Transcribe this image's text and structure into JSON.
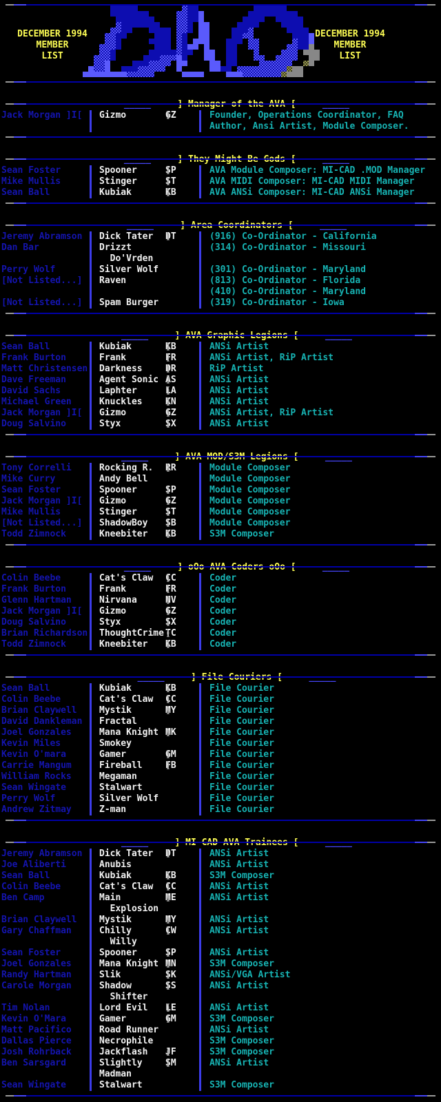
{
  "palette": {
    "background": "#000000",
    "dark_blue": "#0000a8",
    "name_blue": "#1414af",
    "bright_blue": "#4646fa",
    "yellow": "#fcfc54",
    "white": "#f2f2f2",
    "gray": "#a8a8a8",
    "cyan": "#17b3b3"
  },
  "banner": {
    "left": [
      "DECEMBER 1994",
      "MEMBER",
      "LIST"
    ],
    "right": [
      "DECEMBER 1994",
      "MEMBER",
      "LIST"
    ]
  },
  "logo": {
    "name": "ava-ansi-logo",
    "rows": [
      ".....BBBBB........hBB..........BBBBBB.......",
      ".....BBBBBBB.....hhBBb........BBBBBBBBB.....",
      "......BBBBBBB....hhBBb.......BBBB..BBBBB....",
      "......hBBBBBBB...hhB.bb.....BBBB....BBBB....",
      ".....hhBB...BBBB.hhB.bb....BBBh......BBBB...",
      "....hhBB.....BBB.hB..bb....BBhh.......BBBb..",
      "....hhB.....BBBB.hB.bbb...BBB.hh......hBBb..",
      "...hhhB......BBB.hBbb.b...BB..hh.....hhBBg..",
      "...hhB......BBBBBhBB..bb..BB...h....hhh.ggg.",
      "..hhhB.....BBBhhhbB...bb..BB...hh..hhhh..gg.",
      "..hhb....BBBhhhh.bb....bb.BB....hhhhhh..yg..",
      ".bhhb..BBBhhhhh..b.....bbBB.hhhhhhhhhygg....",
      "bbbbbbbbhhhhh.....bbbb....bbbhhhhhhhyggg...."
    ]
  },
  "header_decor": {
    "underscores": "_____",
    "dashes": "----",
    "bracket_left": "]",
    "bracket_right": "[",
    "paren_open": "(",
    "paren_close": ")"
  },
  "sections": [
    {
      "title": "Manager of the AVA",
      "rows": [
        {
          "name": "Jack Morgan ]I[",
          "handle": "Gizmo",
          "init": "GZ",
          "desc": "Founder, Operations Coordinator, FAQ"
        },
        {
          "desc": "Author, Ansi Artist, Module Composer."
        }
      ]
    },
    {
      "title": "They Might Be Gods",
      "rows": [
        {
          "name": "Sean Foster",
          "handle": "Spooner",
          "init": "SP",
          "desc": "AVA Module Composer: MI-CAD .MOD Manager"
        },
        {
          "name": "Mike Mullis",
          "handle": "Stinger",
          "init": "ST",
          "desc": "AVA MIDI Composer: MI-CAD MIDI Manager"
        },
        {
          "name": "Sean Ball",
          "handle": "Kubiak",
          "init": "KB",
          "desc": "AVA ANSi Composer: MI-CAD ANSi Manager"
        }
      ]
    },
    {
      "title": "Area Coordinators",
      "rows": [
        {
          "name": "Jeremy Abramson",
          "handle": "Dick Tater",
          "init": "DT",
          "desc": "(916) Co-Ordinator - California"
        },
        {
          "name": "Dan Bar",
          "handle": "Drizzt",
          "desc": "(314) Co-Ordinator - Missouri"
        },
        {
          "handle": "  Do'Vrden"
        },
        {
          "name": "Perry Wolf",
          "handle": "Silver Wolf",
          "desc": "(301) Co-Ordinator - Maryland"
        },
        {
          "name": "[Not Listed...]",
          "handle": "Raven",
          "desc": "(813) Co-Ordinator - Florida"
        },
        {
          "desc": "(410) Co-Ordinator - Maryland"
        },
        {
          "name": "[Not Listed...]",
          "handle": "Spam Burger",
          "desc": "(319) Co-Ordinator - Iowa"
        }
      ]
    },
    {
      "title": "AVA Graphic Legions",
      "rows": [
        {
          "name": "Sean Ball",
          "handle": "Kubiak",
          "init": "KB",
          "desc": "ANSi Artist"
        },
        {
          "name": "Frank Burton",
          "handle": "Frank",
          "init": "FR",
          "desc": "ANSi Artist, RiP Artist"
        },
        {
          "name": "Matt Christensen",
          "handle": "Darkness",
          "init": "DR",
          "desc": "RiP Artist"
        },
        {
          "name": "Dave Freeman",
          "handle": "Agent Sonic",
          "init": "AS",
          "desc": "ANSi Artist"
        },
        {
          "name": "David Sachs",
          "handle": "Laphter",
          "init": "LA",
          "desc": "ANSi Artist"
        },
        {
          "name": "Michael Green",
          "handle": "Knuckles",
          "init": "KN",
          "desc": "ANSi Artist"
        },
        {
          "name": "Jack Morgan ]I[",
          "handle": "Gizmo",
          "init": "GZ",
          "desc": "ANSi Artist, RiP Artist"
        },
        {
          "name": "Doug Salvino",
          "handle": "Styx",
          "init": "SX",
          "desc": "ANSi Artist"
        }
      ]
    },
    {
      "title": "AVA MOD/S3M Legions",
      "rows": [
        {
          "name": "Tony Correlli",
          "handle": "Rocking R.",
          "init": "RR",
          "desc": "Module Composer"
        },
        {
          "name": "Mike Curry",
          "handle": "Andy Bell",
          "desc": "Module Composer"
        },
        {
          "name": "Sean Foster",
          "handle": "Spooner",
          "init": "SP",
          "desc": "Module Composer"
        },
        {
          "name": "Jack Morgan ]I[",
          "handle": "Gizmo",
          "init": "GZ",
          "desc": "Module Composer"
        },
        {
          "name": "Mike Mullis",
          "handle": "Stinger",
          "init": "ST",
          "desc": "Module Composer"
        },
        {
          "name": "[Not Listed...]",
          "handle": "ShadowBoy",
          "init": "SB",
          "desc": "Module Composer"
        },
        {
          "name": "Todd Zimnock",
          "handle": "Kneebiter",
          "init": "KB",
          "desc": "S3M Composer"
        }
      ]
    },
    {
      "title": "oOo AVA Coders oOo",
      "rows": [
        {
          "name": "Colin Beebe",
          "handle": "Cat's Claw",
          "init": "CC",
          "desc": "Coder"
        },
        {
          "name": "Frank Burton",
          "handle": "Frank",
          "init": "FR",
          "desc": "Coder"
        },
        {
          "name": "Glenn Hartman",
          "handle": "Nirvana",
          "init": "NV",
          "desc": "Coder"
        },
        {
          "name": "Jack Morgan ]I[",
          "handle": "Gizmo",
          "init": "GZ",
          "desc": "Coder"
        },
        {
          "name": "Doug Salvino",
          "handle": "Styx",
          "init": "SX",
          "desc": "Coder"
        },
        {
          "name": "Brian Richardson",
          "handle": "ThoughtCrime",
          "init": "TC",
          "desc": "Coder"
        },
        {
          "name": "Todd Zimnock",
          "handle": "Kneebiter",
          "init": "KB",
          "desc": "Coder"
        }
      ]
    },
    {
      "title": "File Couriers",
      "rows": [
        {
          "name": "Sean Ball",
          "handle": "Kubiak",
          "init": "KB",
          "desc": "File Courier"
        },
        {
          "name": "Colin Beebe",
          "handle": "Cat's Claw",
          "init": "CC",
          "desc": "File Courier"
        },
        {
          "name": "Brian Claywell",
          "handle": "Mystik",
          "init": "MY",
          "desc": "File Courier"
        },
        {
          "name": "David Dankleman",
          "handle": "Fractal",
          "desc": "File Courier"
        },
        {
          "name": "Joel Gonzales",
          "handle": "Mana Knight",
          "init": "MK",
          "desc": "File Courier"
        },
        {
          "name": "Kevin Miles",
          "handle": "Smokey",
          "desc": "File Courier"
        },
        {
          "name": "Kevin O'mara",
          "handle": "Gamer",
          "init": "GM",
          "desc": "File Courier"
        },
        {
          "name": "Carrie Mangum",
          "handle": "Fireball",
          "init": "FB",
          "desc": "File Courier"
        },
        {
          "name": "William Rocks",
          "handle": "Megaman",
          "desc": "File Courier"
        },
        {
          "name": "Sean Wingate",
          "handle": "Stalwart",
          "desc": "File Courier"
        },
        {
          "name": "Perry Wolf",
          "handle": "Silver Wolf",
          "desc": "File Courier"
        },
        {
          "name": "Andrew Zitmay",
          "handle": "Z-man",
          "desc": "File Courier"
        }
      ]
    },
    {
      "title": "MI-CAD AVA Trainees",
      "rows": [
        {
          "name": "Jeremy Abramson",
          "handle": "Dick Tater",
          "init": "DT",
          "desc": "ANSi Artist"
        },
        {
          "name": "Joe Aliberti",
          "handle": "Anubis",
          "desc": "ANSi Artist"
        },
        {
          "name": "Sean Ball",
          "handle": "Kubiak",
          "init": "KB",
          "desc": "S3M Composer"
        },
        {
          "name": "Colin Beebe",
          "handle": "Cat's Claw",
          "init": "CC",
          "desc": "ANSi Artist"
        },
        {
          "name": "Ben Camp",
          "handle": "Main",
          "init": "ME",
          "desc": "ANSi Artist"
        },
        {
          "handle": "  Explosion"
        },
        {
          "name": "Brian Claywell",
          "handle": "Mystik",
          "init": "MY",
          "desc": "ANSi Artist"
        },
        {
          "name": "Gary Chaffman",
          "handle": "Chilly",
          "init": "CW",
          "desc": "ANSi Artist"
        },
        {
          "handle": "  Willy"
        },
        {
          "name": "Sean Foster",
          "handle": "Spooner",
          "init": "SP",
          "desc": "ANSi Artist"
        },
        {
          "name": "Joel Gonzales",
          "handle": "Mana Knight",
          "init": "MN",
          "desc": "S3M Composer"
        },
        {
          "name": "Randy Hartman",
          "handle": "Slik",
          "init": "SK",
          "desc": "ANSi/VGA Artist"
        },
        {
          "name": "Carole Morgan",
          "handle": "Shadow",
          "init": "SS",
          "desc": "ANSi Artist"
        },
        {
          "handle": "  Shifter"
        },
        {
          "name": "Tim Nolan",
          "handle": "Lord Evil",
          "init": "LE",
          "desc": "ANSi Artist"
        },
        {
          "name": "Kevin O'Mara",
          "handle": "Gamer",
          "init": "GM",
          "desc": "S3M Composer"
        },
        {
          "name": "Matt Pacifico",
          "handle": "Road Runner",
          "desc": "ANSi Artist"
        },
        {
          "name": "Dallas Pierce",
          "handle": "Necrophile",
          "desc": "S3M Composer"
        },
        {
          "name": "Josh Rohrback",
          "handle": "Jackflash",
          "init": "JF",
          "desc": "S3M Composer"
        },
        {
          "name": "Ben Sarsgard",
          "handle": "Slightly",
          "init": "SM",
          "desc": "ANSi Artist"
        },
        {
          "handle": "Madman"
        },
        {
          "name": "Sean Wingate",
          "handle": "Stalwart",
          "desc": "S3M Composer"
        }
      ]
    }
  ]
}
